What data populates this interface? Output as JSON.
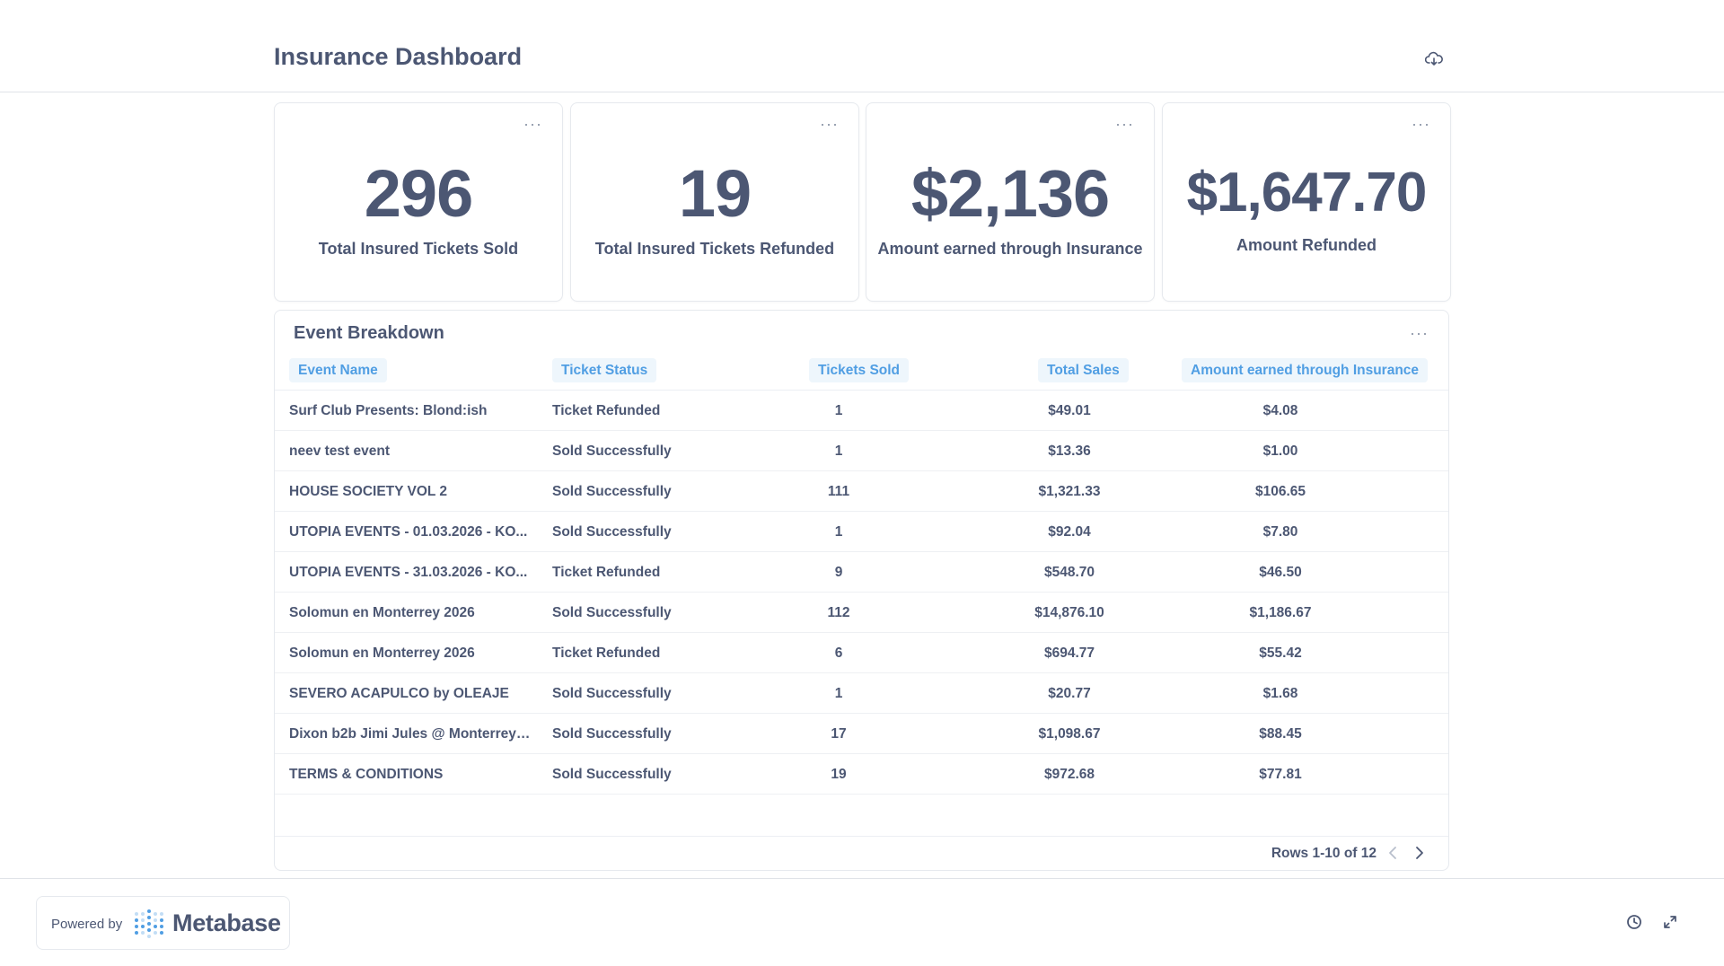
{
  "header": {
    "title": "Insurance Dashboard",
    "download_icon": "cloud-download-icon"
  },
  "cards": [
    {
      "value": "296",
      "label": "Total Insured Tickets Sold"
    },
    {
      "value": "19",
      "label": "Total Insured Tickets Refunded"
    },
    {
      "value": "$2,136",
      "label": "Amount earned through Insurance"
    },
    {
      "value": "$1,647.70",
      "label": "Amount Refunded"
    }
  ],
  "menu_glyph": "···",
  "table": {
    "title": "Event Breakdown",
    "columns": [
      "Event Name",
      "Ticket Status",
      "Tickets Sold",
      "Total Sales",
      "Amount earned through Insurance"
    ],
    "rows": [
      [
        "Surf Club Presents: Blond:ish",
        "Ticket Refunded",
        "1",
        "$49.01",
        "$4.08"
      ],
      [
        "neev test event",
        "Sold Successfully",
        "1",
        "$13.36",
        "$1.00"
      ],
      [
        "HOUSE SOCIETY VOL 2",
        "Sold Successfully",
        "111",
        "$1,321.33",
        "$106.65"
      ],
      [
        "UTOPIA EVENTS - 01.03.2026 - KO...",
        "Sold Successfully",
        "1",
        "$92.04",
        "$7.80"
      ],
      [
        "UTOPIA EVENTS - 31.03.2026 - KO...",
        "Ticket Refunded",
        "9",
        "$548.70",
        "$46.50"
      ],
      [
        "Solomun en Monterrey 2026",
        "Sold Successfully",
        "112",
        "$14,876.10",
        "$1,186.67"
      ],
      [
        "Solomun en Monterrey 2026",
        "Ticket Refunded",
        "6",
        "$694.77",
        "$55.42"
      ],
      [
        "SEVERO ACAPULCO by OLEAJE",
        "Sold Successfully",
        "1",
        "$20.77",
        "$1.68"
      ],
      [
        "Dixon b2b Jimi Jules @ Monterrey 2...",
        "Sold Successfully",
        "17",
        "$1,098.67",
        "$88.45"
      ],
      [
        "TERMS & CONDITIONS",
        "Sold Successfully",
        "19",
        "$972.68",
        "$77.81"
      ]
    ],
    "pagination": "Rows 1-10 of 12"
  },
  "footer": {
    "powered_by": "Powered by",
    "brand": "Metabase"
  },
  "colors": {
    "text": "#4c5773",
    "accent": "#509ee3",
    "header_bg": "#eef6fc",
    "border": "#e6e9ee"
  }
}
